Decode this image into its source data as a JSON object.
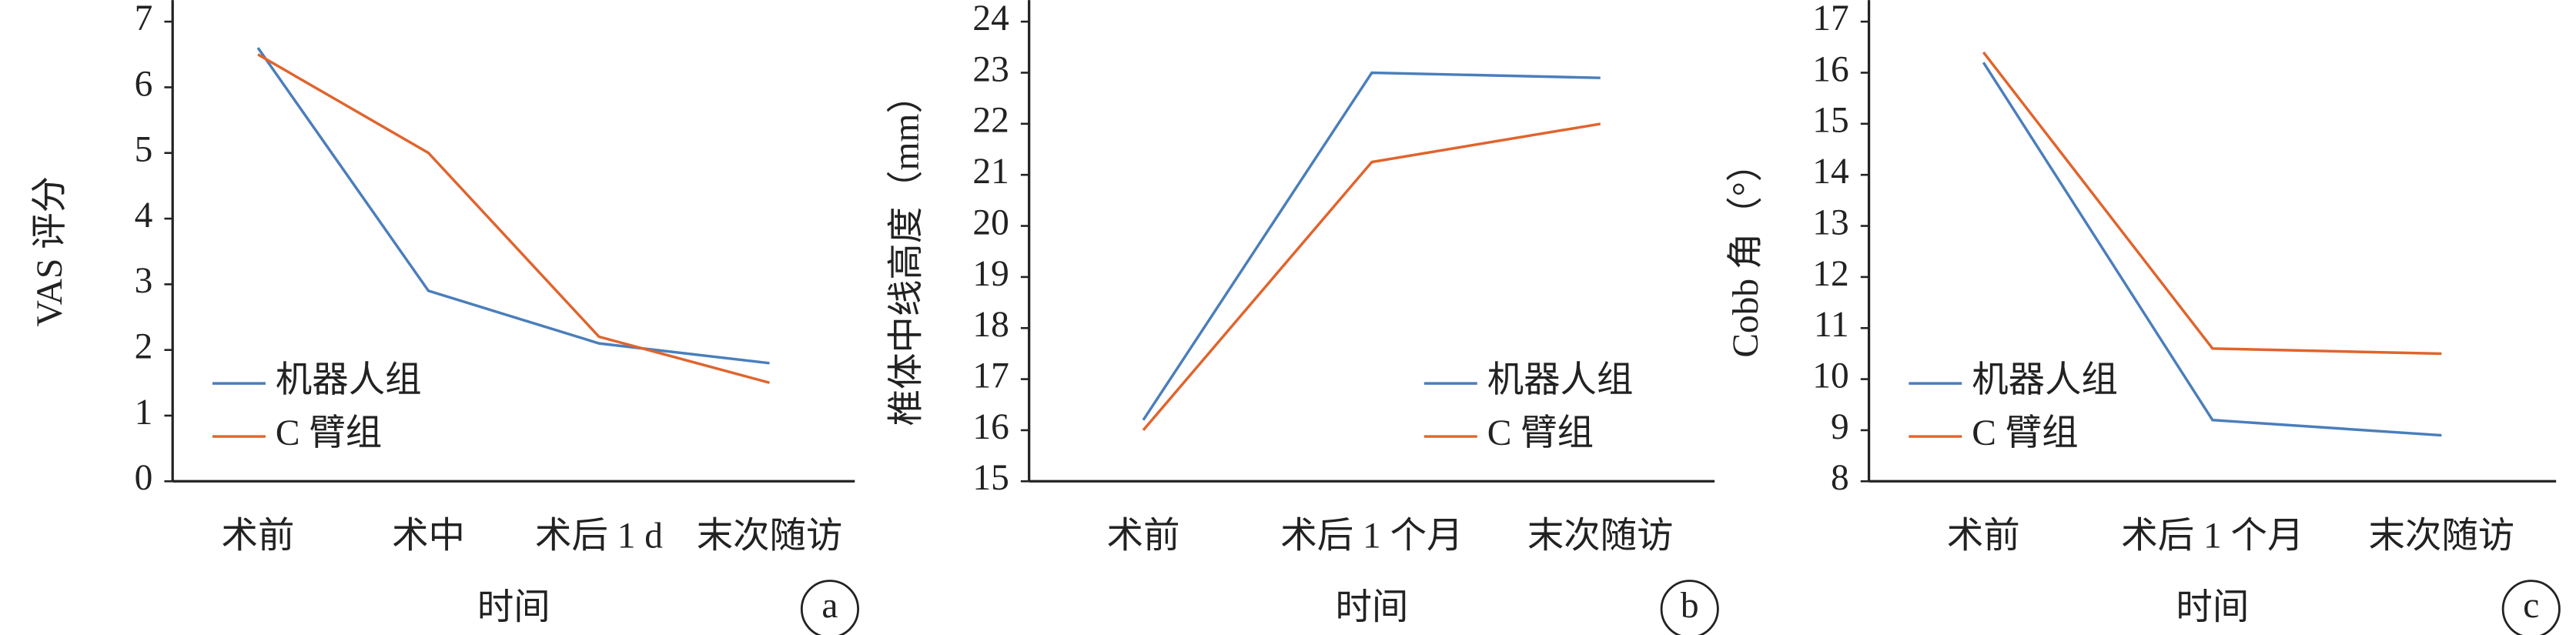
{
  "chart_data": [
    {
      "type": "line",
      "ylabel": "VAS 评分",
      "xlabel": "时间",
      "panel": "a",
      "categories": [
        "术前",
        "术中",
        "术后 1 d",
        "末次随访"
      ],
      "series": [
        {
          "name": "机器人组",
          "color": "#4a7ebb",
          "values": [
            6.6,
            2.9,
            2.1,
            1.8
          ]
        },
        {
          "name": "C 臂组",
          "color": "#e0642d",
          "values": [
            6.5,
            5.0,
            2.2,
            1.5
          ]
        }
      ],
      "ylim": [
        0,
        7
      ],
      "yticks": [
        0,
        1,
        2,
        3,
        4,
        5,
        6,
        7
      ],
      "legend": "lower left"
    },
    {
      "type": "line",
      "ylabel": "椎体中线高度（mm）",
      "xlabel": "时间",
      "panel": "b",
      "categories": [
        "术前",
        "术后 1 个月",
        "末次随访"
      ],
      "series": [
        {
          "name": "机器人组",
          "color": "#4a7ebb",
          "values": [
            16.2,
            23.0,
            22.9
          ]
        },
        {
          "name": "C 臂组",
          "color": "#e0642d",
          "values": [
            16.0,
            21.25,
            22.0
          ]
        }
      ],
      "ylim": [
        15,
        24
      ],
      "yticks": [
        15,
        16,
        17,
        18,
        19,
        20,
        21,
        22,
        23,
        24
      ],
      "legend": "lower right"
    },
    {
      "type": "line",
      "ylabel": "Cobb 角（°）",
      "xlabel": "时间",
      "panel": "c",
      "categories": [
        "术前",
        "术后 1 个月",
        "末次随访"
      ],
      "series": [
        {
          "name": "机器人组",
          "color": "#4a7ebb",
          "values": [
            16.2,
            9.2,
            8.9
          ]
        },
        {
          "name": "C 臂组",
          "color": "#e0642d",
          "values": [
            16.4,
            10.6,
            10.5
          ]
        }
      ],
      "ylim": [
        8,
        17
      ],
      "yticks": [
        8,
        9,
        10,
        11,
        12,
        13,
        14,
        15,
        16,
        17
      ],
      "legend": "lower left"
    }
  ]
}
